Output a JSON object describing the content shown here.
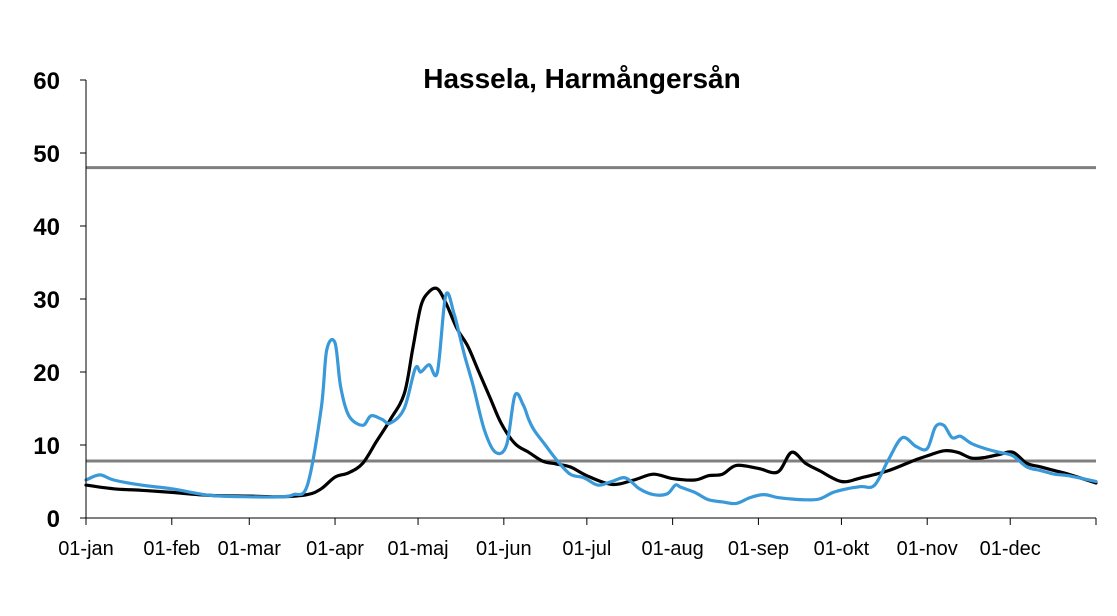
{
  "chart_data": {
    "type": "line",
    "title": "Hassela,  Harmångersån",
    "xlabel": "",
    "ylabel": "",
    "xlim": [
      0,
      365
    ],
    "ylim": [
      0,
      60
    ],
    "yticks": [
      0,
      10,
      20,
      30,
      40,
      50,
      60
    ],
    "xticks": [
      {
        "label": "01-jan",
        "day": 0
      },
      {
        "label": "01-feb",
        "day": 31
      },
      {
        "label": "01-mar",
        "day": 59
      },
      {
        "label": "01-apr",
        "day": 90
      },
      {
        "label": "01-maj",
        "day": 120
      },
      {
        "label": "01-jun",
        "day": 151
      },
      {
        "label": "01-jul",
        "day": 181
      },
      {
        "label": "01-aug",
        "day": 212
      },
      {
        "label": "01-sep",
        "day": 243
      },
      {
        "label": "01-okt",
        "day": 273
      },
      {
        "label": "01-nov",
        "day": 304
      },
      {
        "label": "01-dec",
        "day": 334
      }
    ],
    "grid": false,
    "legend": "none",
    "reference_lines": [
      {
        "y": 48,
        "color": "#808080"
      },
      {
        "y": 7.8,
        "color": "#808080"
      }
    ],
    "series": [
      {
        "color": "#000000",
        "x": [
          0,
          10,
          20,
          31,
          45,
          59,
          70,
          80,
          85,
          90,
          95,
          100,
          105,
          110,
          115,
          118,
          121,
          124,
          127,
          130,
          134,
          138,
          142,
          146,
          150,
          155,
          160,
          165,
          170,
          175,
          181,
          190,
          198,
          205,
          212,
          220,
          225,
          230,
          235,
          243,
          250,
          255,
          260,
          265,
          273,
          280,
          290,
          300,
          304,
          310,
          315,
          320,
          325,
          330,
          335,
          340,
          345,
          350,
          355,
          365
        ],
        "y": [
          4.5,
          4.0,
          3.8,
          3.5,
          3.1,
          3.0,
          2.9,
          3.2,
          4.0,
          5.6,
          6.2,
          7.5,
          10.5,
          13.5,
          17.0,
          23.0,
          29.0,
          31.0,
          31.4,
          29.5,
          26.0,
          23.5,
          20.0,
          16.5,
          13.0,
          10.2,
          9.0,
          7.8,
          7.4,
          7.0,
          5.8,
          4.6,
          5.2,
          6.0,
          5.4,
          5.2,
          5.8,
          6.0,
          7.2,
          6.8,
          6.3,
          9.0,
          7.5,
          6.5,
          5.0,
          5.5,
          6.5,
          8.0,
          8.5,
          9.2,
          9.0,
          8.2,
          8.3,
          8.7,
          9.0,
          7.5,
          7.0,
          6.5,
          6.0,
          4.8
        ]
      },
      {
        "color": "#3a99d8",
        "x": [
          0,
          5,
          10,
          20,
          31,
          45,
          59,
          70,
          75,
          80,
          85,
          87,
          90,
          92,
          95,
          100,
          103,
          107,
          110,
          115,
          119,
          121,
          124,
          127,
          130,
          133,
          135,
          137,
          140,
          144,
          148,
          152,
          155,
          158,
          160,
          162,
          166,
          170,
          175,
          180,
          185,
          190,
          195,
          200,
          205,
          210,
          213,
          215,
          220,
          225,
          230,
          235,
          240,
          245,
          250,
          255,
          260,
          265,
          270,
          275,
          280,
          285,
          290,
          295,
          300,
          304,
          307,
          310,
          313,
          316,
          320,
          325,
          330,
          335,
          340,
          345,
          350,
          355,
          365
        ],
        "y": [
          5.2,
          5.9,
          5.2,
          4.5,
          4.0,
          3.1,
          2.9,
          2.9,
          3.2,
          4.5,
          15.0,
          23.0,
          24.0,
          18.0,
          14.0,
          12.7,
          14.0,
          13.5,
          13.0,
          15.0,
          20.5,
          20.0,
          21.0,
          20.0,
          30.5,
          28.0,
          25.0,
          22.0,
          18.0,
          12.0,
          9.0,
          10.0,
          16.8,
          15.5,
          13.5,
          12.0,
          10.0,
          8.0,
          6.0,
          5.5,
          4.5,
          5.0,
          5.5,
          4.0,
          3.2,
          3.3,
          4.5,
          4.2,
          3.5,
          2.5,
          2.2,
          2.0,
          2.8,
          3.2,
          2.8,
          2.6,
          2.5,
          2.6,
          3.5,
          4.0,
          4.3,
          4.5,
          8.0,
          11.0,
          9.8,
          9.5,
          12.5,
          12.7,
          11.0,
          11.2,
          10.2,
          9.5,
          9.0,
          8.5,
          7.0,
          6.5,
          6.0,
          5.8,
          5.0
        ]
      }
    ]
  }
}
